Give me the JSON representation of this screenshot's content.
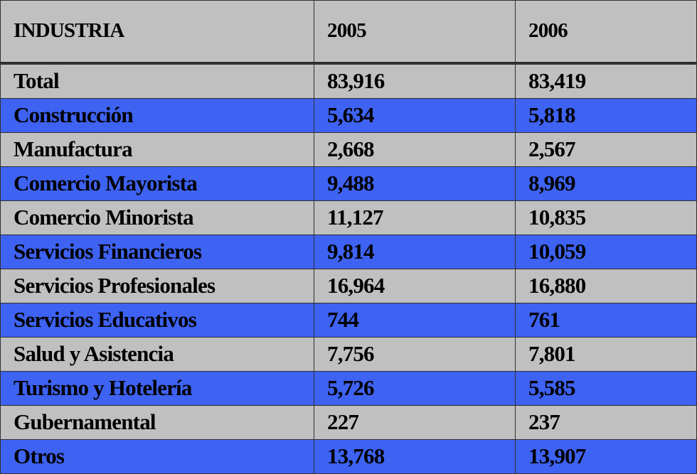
{
  "table": {
    "header": [
      "INDUSTRIA",
      "2005",
      "2006"
    ],
    "rows": [
      [
        "Total",
        "83,916",
        "83,419"
      ],
      [
        "Construcción",
        "5,634",
        "5,818"
      ],
      [
        "Manufactura",
        "2,668",
        "2,567"
      ],
      [
        "Comercio Mayorista",
        "9,488",
        "8,969"
      ],
      [
        "Comercio Minorista",
        "11,127",
        "10,835"
      ],
      [
        "Servicios Financieros",
        "9,814",
        "10,059"
      ],
      [
        "Servicios Profesionales",
        "16,964",
        "16,880"
      ],
      [
        "Servicios Educativos",
        "744",
        "761"
      ],
      [
        "Salud y Asistencia",
        "7,756",
        "7,801"
      ],
      [
        "Turismo y Hotelería",
        "5,726",
        "5,585"
      ],
      [
        "Gubernamental",
        "227",
        "237"
      ],
      [
        "Otros",
        "13,768",
        "13,907"
      ]
    ]
  }
}
